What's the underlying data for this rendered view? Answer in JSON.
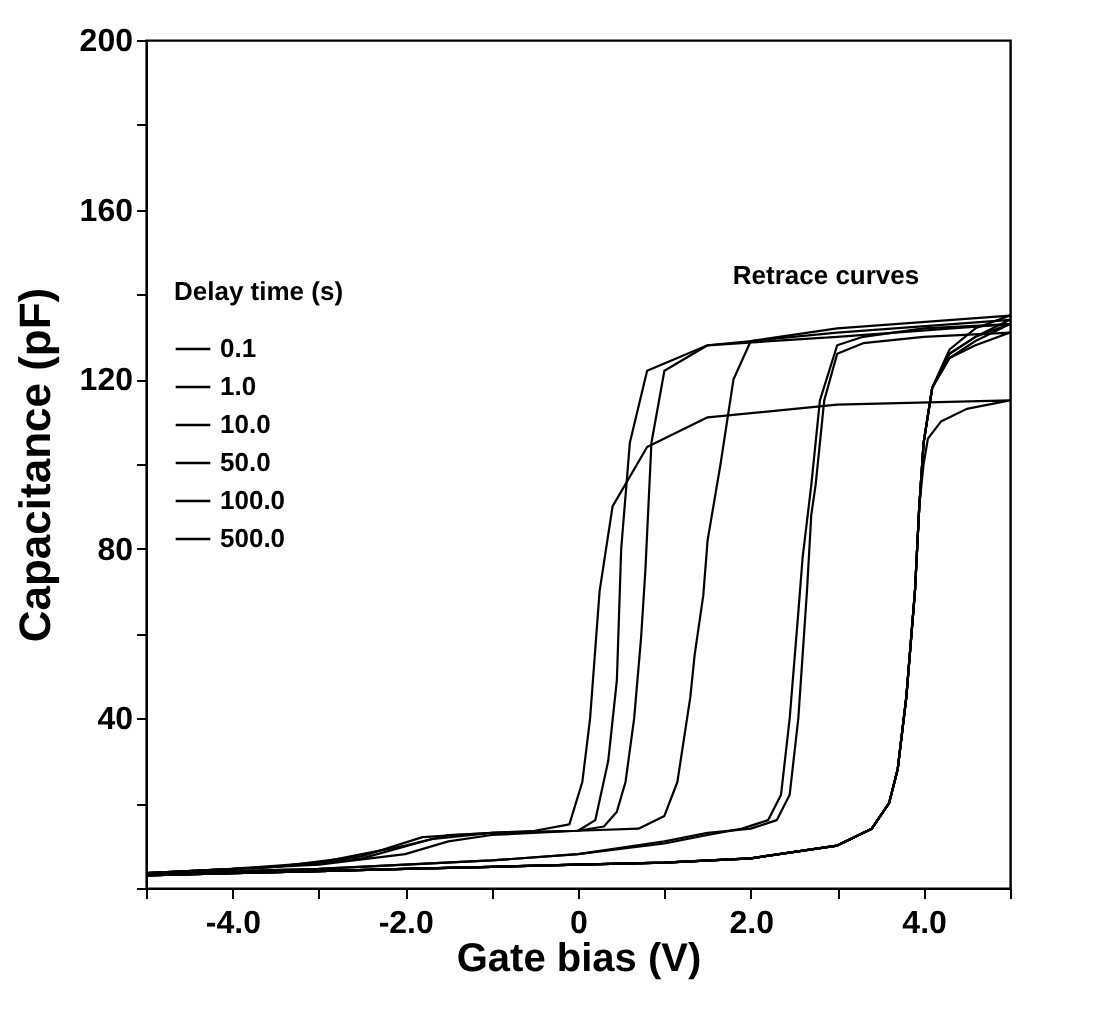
{
  "chart_data": {
    "type": "line",
    "xlabel": "Gate bias (V)",
    "ylabel": "Capacitance (pF)",
    "legend_title": "Delay time (s)",
    "annotations": [
      "Retrace curves"
    ],
    "xlim": [
      -5,
      5
    ],
    "xticks": [
      {
        "value": -5,
        "label": null
      },
      {
        "value": -4,
        "label": "-4.0"
      },
      {
        "value": -3,
        "label": null
      },
      {
        "value": -2,
        "label": "-2.0"
      },
      {
        "value": -1,
        "label": null
      },
      0,
      {
        "value": 1,
        "label": null
      },
      {
        "value": 2,
        "label": "2.0"
      },
      {
        "value": 3,
        "label": null
      },
      {
        "value": 4,
        "label": "4.0"
      },
      {
        "value": 5,
        "label": null
      }
    ],
    "ylim": [
      0,
      200
    ],
    "yticks": [
      {
        "value": 0,
        "label": null
      },
      {
        "value": 20,
        "label": null
      },
      40,
      {
        "value": 60,
        "label": null
      },
      80,
      {
        "value": 100,
        "label": null
      },
      120,
      {
        "value": 140,
        "label": null
      },
      160,
      {
        "value": 180,
        "label": null
      },
      200
    ],
    "grid": false,
    "legend": "left",
    "marker": "none",
    "line_style": "solid",
    "series": [
      {
        "name": "0.1",
        "color": "#000000",
        "x": [
          -5,
          -4,
          -3,
          -2,
          -1,
          0,
          1,
          2,
          3,
          3.4,
          3.6,
          3.7,
          3.8,
          3.9,
          3.95,
          4.0,
          4.1,
          4.3,
          4.6,
          5,
          4,
          3.3,
          3.0,
          2.85,
          2.75,
          2.7,
          2.65,
          2.55,
          2.45,
          2.3,
          2.0,
          1.5,
          1.0,
          0,
          -1,
          -2,
          -3,
          -4,
          -5
        ],
        "values": [
          3,
          3.5,
          4,
          4.5,
          5,
          5.5,
          6,
          7,
          10,
          14,
          20,
          28,
          45,
          70,
          90,
          105,
          118,
          125,
          128,
          131,
          130,
          128.5,
          126,
          115,
          95,
          88,
          70,
          40,
          22,
          16,
          14,
          13,
          11,
          8,
          6.5,
          5.5,
          4.5,
          4,
          3.5
        ]
      },
      {
        "name": "1.0",
        "color": "#000000",
        "x": [
          -5,
          -4,
          -3,
          -2,
          -1,
          0,
          1,
          2,
          3,
          3.4,
          3.6,
          3.7,
          3.8,
          3.9,
          3.95,
          4.0,
          4.1,
          4.3,
          4.6,
          5,
          4,
          3.3,
          3.0,
          2.8,
          2.7,
          2.6,
          2.55,
          2.45,
          2.35,
          2.2,
          1.9,
          1.5,
          1.0,
          0,
          -1,
          -2,
          -3,
          -4,
          -5
        ],
        "values": [
          3,
          3.5,
          4,
          4.5,
          5,
          5.5,
          6,
          7,
          10,
          14,
          20,
          28,
          45,
          70,
          90,
          105,
          118,
          126,
          130,
          133,
          132,
          130,
          128,
          115,
          95,
          78,
          65,
          40,
          22,
          16,
          14,
          12.5,
          10.5,
          8,
          6.5,
          5.5,
          4.5,
          4,
          3.5
        ]
      },
      {
        "name": "10.0",
        "color": "#000000",
        "x": [
          -5,
          -4,
          -3,
          -2,
          -1,
          0,
          1,
          2,
          3,
          3.4,
          3.6,
          3.7,
          3.8,
          3.9,
          3.95,
          4.0,
          4.1,
          4.3,
          4.6,
          5,
          3,
          2,
          1.8,
          1.65,
          1.5,
          1.45,
          1.35,
          1.3,
          1.15,
          1.0,
          0.7,
          0,
          -1,
          -1.5,
          -2,
          -3,
          -4,
          -5
        ],
        "values": [
          3,
          3.5,
          4,
          4.5,
          5,
          5.5,
          6,
          7,
          10,
          14,
          20,
          28,
          45,
          70,
          90,
          105,
          118,
          127,
          132,
          135,
          132,
          129,
          120,
          100,
          82,
          69,
          55,
          45,
          25,
          17,
          14,
          13.5,
          12.5,
          11,
          8,
          5.5,
          4.5,
          3.5
        ]
      },
      {
        "name": "50.0",
        "color": "#000000",
        "x": [
          -5,
          -4,
          -3,
          -2,
          -1,
          0,
          1,
          2,
          3,
          3.4,
          3.6,
          3.7,
          3.8,
          3.9,
          3.95,
          4.0,
          4.1,
          4.3,
          4.6,
          5,
          3,
          1.5,
          1.0,
          0.85,
          0.78,
          0.73,
          0.65,
          0.55,
          0.45,
          0.3,
          0,
          -1,
          -1.7,
          -2.5,
          -3.5,
          -5
        ],
        "values": [
          3,
          3.5,
          4,
          4.5,
          5,
          5.5,
          6,
          7,
          10,
          14,
          20,
          28,
          45,
          70,
          90,
          105,
          118,
          126,
          130,
          134,
          131,
          128,
          122,
          105,
          75,
          59,
          40,
          25,
          18,
          14.5,
          13.5,
          13,
          11.5,
          7,
          5,
          3.5
        ]
      },
      {
        "name": "100.0",
        "color": "#000000",
        "x": [
          -5,
          -4,
          -3,
          -2,
          -1,
          0,
          1,
          2,
          3,
          3.4,
          3.6,
          3.7,
          3.8,
          3.9,
          3.95,
          4.0,
          4.1,
          4.3,
          4.6,
          5,
          3,
          1.5,
          0.8,
          0.6,
          0.5,
          0.45,
          0.35,
          0.2,
          0,
          -1,
          -1.8,
          -2.5,
          -3.5,
          -5
        ],
        "values": [
          3,
          3.5,
          4,
          4.5,
          5,
          5.5,
          6,
          7,
          10,
          14,
          20,
          28,
          45,
          70,
          90,
          105,
          118,
          125,
          129,
          133,
          130,
          128,
          122,
          105,
          80,
          49,
          30,
          16,
          13.5,
          13,
          12,
          7.5,
          5,
          3.5
        ]
      },
      {
        "name": "500.0",
        "color": "#000000",
        "x": [
          -5,
          -4,
          -3,
          -2,
          -1,
          0,
          1,
          2,
          3,
          3.4,
          3.6,
          3.7,
          3.8,
          3.9,
          3.95,
          4.0,
          4.05,
          4.2,
          4.5,
          5,
          3,
          1.5,
          0.8,
          0.4,
          0.25,
          0.14,
          0.05,
          -0.1,
          -0.5,
          -1.5,
          -2,
          -3,
          -4,
          -5
        ],
        "values": [
          3,
          3.5,
          4,
          4.5,
          5,
          5.5,
          6,
          7,
          10,
          14,
          20,
          28,
          45,
          70,
          90,
          100,
          106,
          110,
          113,
          115,
          114,
          111,
          104,
          90,
          70,
          40,
          25,
          15,
          13.5,
          12.5,
          10,
          6,
          4.5,
          3.5
        ]
      }
    ]
  }
}
